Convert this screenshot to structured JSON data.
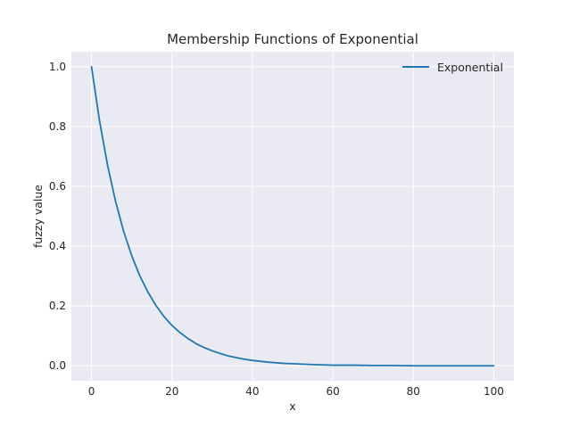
{
  "chart_data": {
    "type": "line",
    "title": "Membership Functions of Exponential",
    "xlabel": "x",
    "ylabel": "fuzzy value",
    "xlim": [
      -5,
      105
    ],
    "ylim": [
      -0.05,
      1.05
    ],
    "xticks": [
      0,
      20,
      40,
      60,
      80,
      100
    ],
    "yticks": [
      0.0,
      0.2,
      0.4,
      0.6,
      0.8,
      1.0
    ],
    "xtick_labels": [
      "0",
      "20",
      "40",
      "60",
      "80",
      "100"
    ],
    "ytick_labels": [
      "0.0",
      "0.2",
      "0.4",
      "0.6",
      "0.8",
      "1.0"
    ],
    "grid": true,
    "legend_position": "top-right",
    "series": [
      {
        "name": "Exponential",
        "color": "#1f77b4",
        "x": [
          0,
          2,
          4,
          6,
          8,
          10,
          12,
          14,
          16,
          18,
          20,
          22,
          24,
          26,
          28,
          30,
          32,
          34,
          36,
          38,
          40,
          42,
          44,
          46,
          48,
          50,
          55,
          60,
          65,
          70,
          75,
          80,
          85,
          90,
          95,
          100
        ],
        "y": [
          1.0,
          0.819,
          0.67,
          0.549,
          0.449,
          0.368,
          0.301,
          0.247,
          0.202,
          0.165,
          0.135,
          0.111,
          0.091,
          0.074,
          0.061,
          0.05,
          0.041,
          0.033,
          0.027,
          0.022,
          0.018,
          0.015,
          0.012,
          0.01,
          0.008,
          0.007,
          0.004,
          0.002,
          0.002,
          0.001,
          0.001,
          0.0,
          0.0,
          0.0,
          0.0,
          0.0
        ]
      }
    ]
  },
  "colors": {
    "axes_background": "#eaeaf2",
    "grid": "#ffffff",
    "text": "#262626"
  }
}
